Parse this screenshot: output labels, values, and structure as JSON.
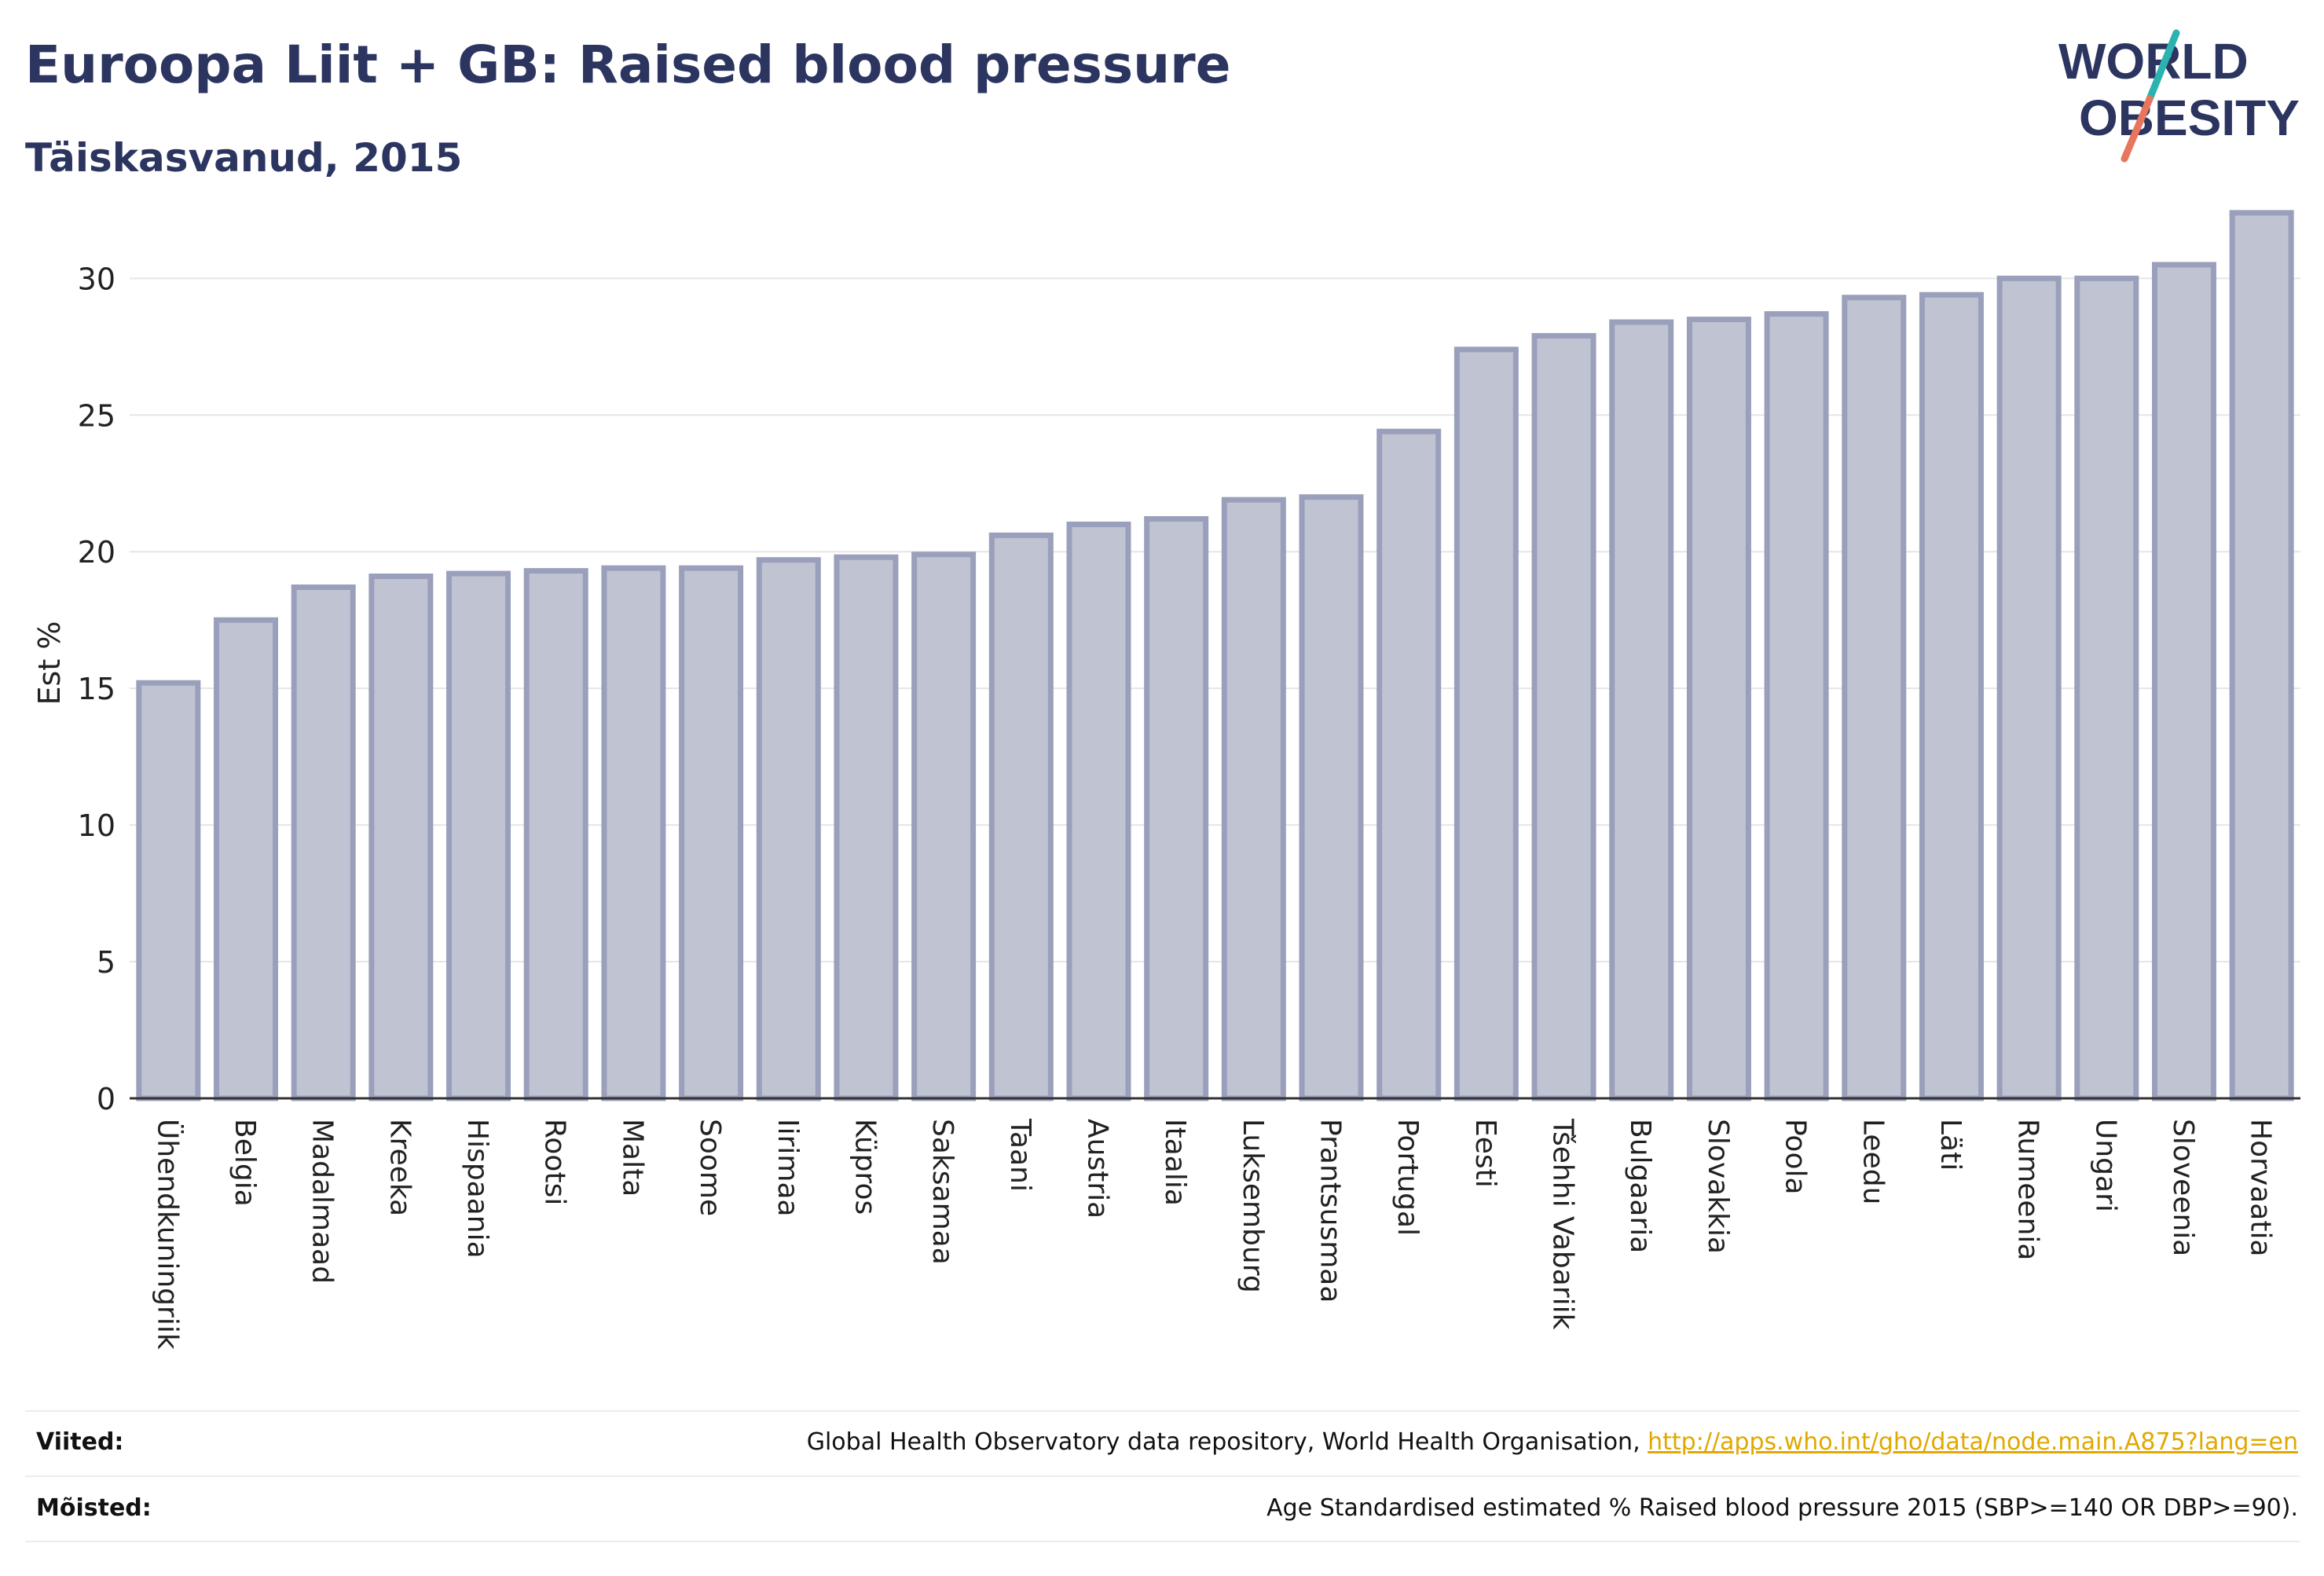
{
  "header": {
    "title": "Euroopa Liit + GB: Raised blood pressure",
    "subtitle": "Täiskasvanud, 2015"
  },
  "logo": {
    "line1": "WORLD",
    "line2": "OBESITY"
  },
  "footer": {
    "sources_label": "Viited:",
    "sources_text": "Global Health Observatory data repository, World Health Organisation, ",
    "sources_link": "http://apps.who.int/gho/data/node.main.A875?lang=en",
    "definitions_label": "Mõisted:",
    "definitions_text": "Age Standardised estimated % Raised blood pressure 2015 (SBP>=140 OR DBP>=90)."
  },
  "colors": {
    "title": "#2b3560",
    "bar_fill": "#c0c3d1",
    "bar_stroke": "#9aa0bb",
    "grid": "#e6e6e6",
    "link": "#e0a800"
  },
  "chart_data": {
    "type": "bar",
    "ylabel": "Est %",
    "xlabel": "",
    "ylim": [
      0,
      33
    ],
    "yticks": [
      0,
      5,
      10,
      15,
      20,
      25,
      30
    ],
    "grid": true,
    "categories": [
      "Ühendkuningriik",
      "Belgia",
      "Madalmaad",
      "Kreeka",
      "Hispaania",
      "Rootsi",
      "Malta",
      "Soome",
      "Iirimaa",
      "Küpros",
      "Saksamaa",
      "Taani",
      "Austria",
      "Itaalia",
      "Luksemburg",
      "Prantsusmaa",
      "Portugal",
      "Eesti",
      "Tšehhi Vabariik",
      "Bulgaaria",
      "Slovakkia",
      "Poola",
      "Leedu",
      "Läti",
      "Rumeenia",
      "Ungari",
      "Sloveenia",
      "Horvaatia"
    ],
    "values": [
      15.2,
      17.5,
      18.7,
      19.1,
      19.2,
      19.3,
      19.4,
      19.4,
      19.7,
      19.8,
      19.9,
      20.6,
      21.0,
      21.2,
      21.9,
      22.0,
      24.4,
      27.4,
      27.9,
      28.4,
      28.5,
      28.7,
      29.3,
      29.4,
      30.0,
      30.0,
      30.5,
      32.4
    ]
  }
}
